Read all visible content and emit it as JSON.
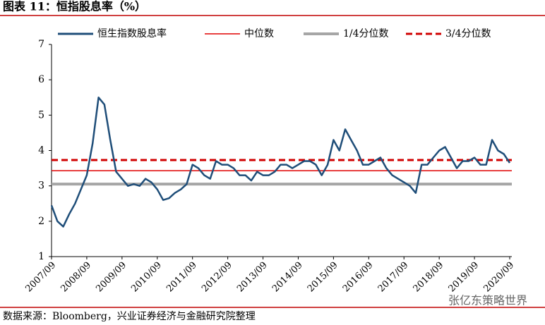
{
  "chart_data": {
    "type": "line",
    "title": "图表 11：恒指股息率（%）",
    "x": [
      "2007/09",
      "2007/11",
      "2008/01",
      "2008/03",
      "2008/05",
      "2008/07",
      "2008/09",
      "2008/11",
      "2009/01",
      "2009/03",
      "2009/05",
      "2009/07",
      "2009/09",
      "2009/11",
      "2010/01",
      "2010/03",
      "2010/05",
      "2010/07",
      "2010/09",
      "2010/11",
      "2011/01",
      "2011/03",
      "2011/05",
      "2011/07",
      "2011/09",
      "2011/11",
      "2012/01",
      "2012/03",
      "2012/05",
      "2012/07",
      "2012/09",
      "2012/11",
      "2013/01",
      "2013/03",
      "2013/05",
      "2013/07",
      "2013/09",
      "2013/11",
      "2014/01",
      "2014/03",
      "2014/05",
      "2014/07",
      "2014/09",
      "2014/11",
      "2015/01",
      "2015/03",
      "2015/05",
      "2015/07",
      "2015/09",
      "2015/11",
      "2016/01",
      "2016/03",
      "2016/05",
      "2016/07",
      "2016/09",
      "2016/11",
      "2017/01",
      "2017/03",
      "2017/05",
      "2017/07",
      "2017/09",
      "2017/11",
      "2018/01",
      "2018/03",
      "2018/05",
      "2018/07",
      "2018/09",
      "2018/11",
      "2019/01",
      "2019/03",
      "2019/05",
      "2019/07",
      "2019/09",
      "2019/11",
      "2020/01",
      "2020/03",
      "2020/05",
      "2020/07",
      "2020/09"
    ],
    "series": [
      {
        "name": "恒生指数股息率",
        "color": "#1f4e79",
        "values": [
          2.45,
          2.0,
          1.85,
          2.2,
          2.5,
          2.9,
          3.3,
          4.2,
          5.5,
          5.3,
          4.3,
          3.4,
          3.2,
          3.0,
          3.05,
          3.0,
          3.2,
          3.1,
          2.9,
          2.6,
          2.65,
          2.8,
          2.9,
          3.05,
          3.6,
          3.5,
          3.3,
          3.2,
          3.7,
          3.6,
          3.6,
          3.5,
          3.3,
          3.3,
          3.15,
          3.4,
          3.3,
          3.3,
          3.4,
          3.6,
          3.6,
          3.5,
          3.6,
          3.7,
          3.7,
          3.6,
          3.3,
          3.6,
          4.3,
          4.0,
          4.6,
          4.3,
          4.0,
          3.6,
          3.6,
          3.7,
          3.8,
          3.5,
          3.3,
          3.2,
          3.1,
          3.0,
          2.8,
          3.6,
          3.6,
          3.8,
          4.0,
          4.1,
          3.8,
          3.5,
          3.7,
          3.7,
          3.8,
          3.6,
          3.6,
          4.3,
          4.0,
          3.9,
          3.65
        ]
      }
    ],
    "reference_lines": [
      {
        "name": "中位数",
        "value": 3.43,
        "color": "#e00000",
        "style": "solid"
      },
      {
        "name": "1/4分位数",
        "value": 3.05,
        "color": "#a6a6a6",
        "style": "thick"
      },
      {
        "name": "3/4分位数",
        "value": 3.73,
        "color": "#d00000",
        "style": "dashed"
      }
    ],
    "xticks": [
      "2007/09",
      "2008/09",
      "2009/09",
      "2010/09",
      "2011/09",
      "2012/09",
      "2013/09",
      "2014/09",
      "2015/09",
      "2016/09",
      "2017/09",
      "2018/09",
      "2019/09",
      "2020/09"
    ],
    "ylim": [
      1,
      7
    ],
    "yticks": [
      1,
      2,
      3,
      4,
      5,
      6,
      7
    ],
    "source": "数据来源：Bloomberg，兴业证券经济与金融研究院整理",
    "watermark": "张亿东策略世界"
  }
}
